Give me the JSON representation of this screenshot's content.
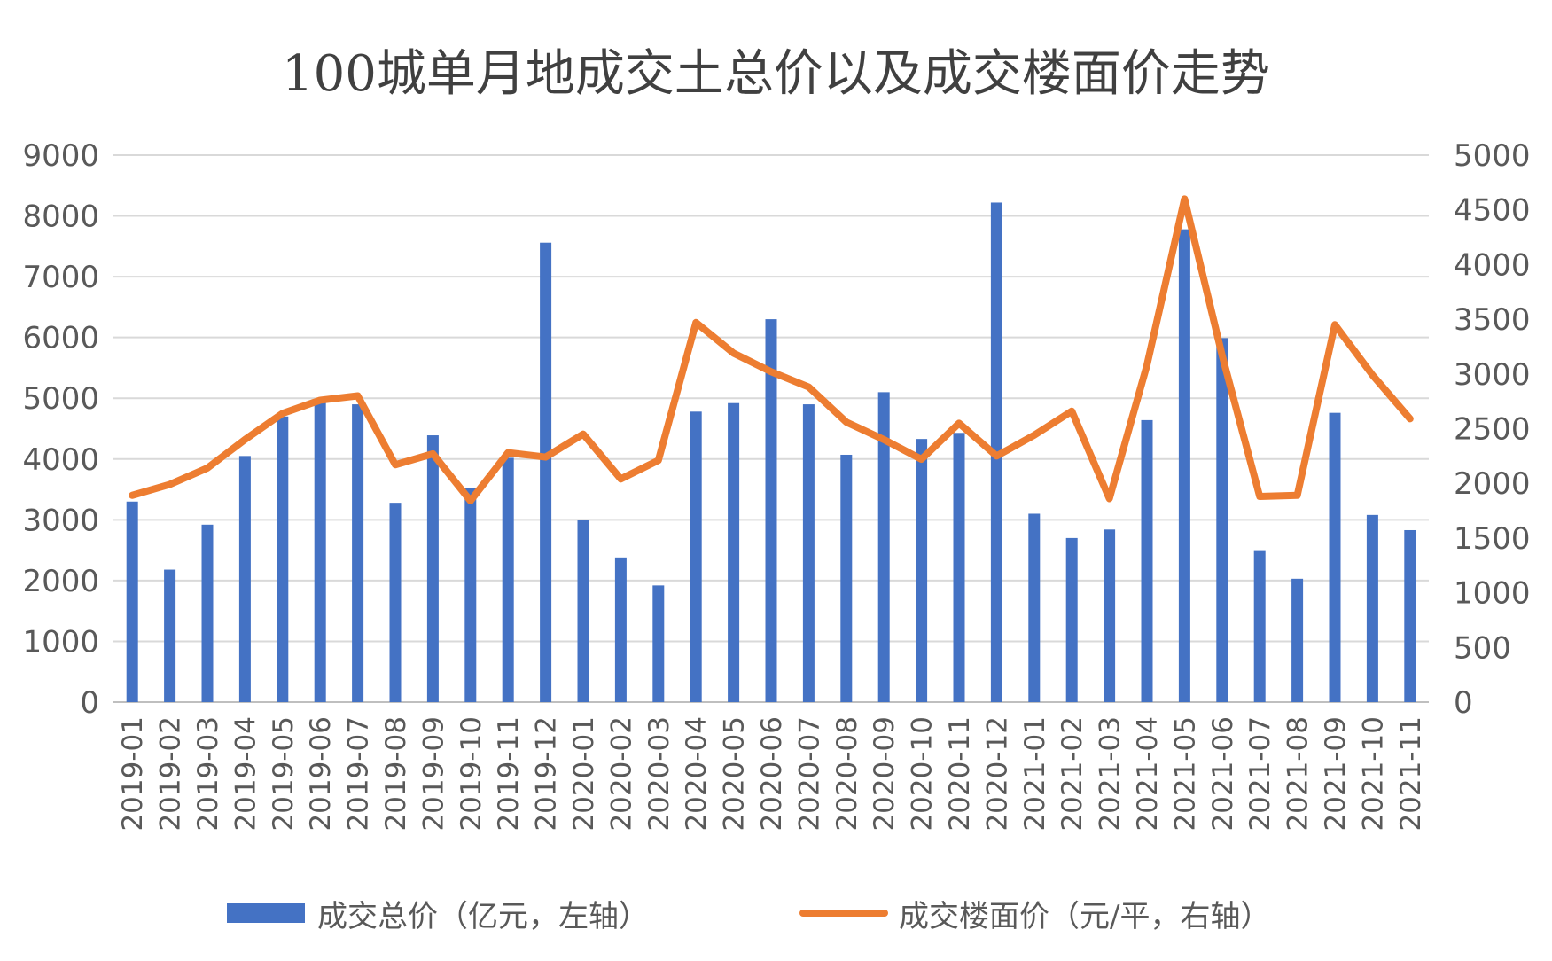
{
  "colors": {
    "bar": "#4472C4",
    "line": "#ED7D31",
    "grid": "#D9D9D9",
    "text": "#595959"
  },
  "chart_data": {
    "type": "bar",
    "title": "100城单月地成交土总价以及成交楼面价走势",
    "categories": [
      "2019-01",
      "2019-02",
      "2019-03",
      "2019-04",
      "2019-05",
      "2019-06",
      "2019-07",
      "2019-08",
      "2019-09",
      "2019-10",
      "2019-11",
      "2019-12",
      "2020-01",
      "2020-02",
      "2020-03",
      "2020-04",
      "2020-05",
      "2020-06",
      "2020-07",
      "2020-08",
      "2020-09",
      "2020-10",
      "2020-11",
      "2020-12",
      "2021-01",
      "2021-02",
      "2021-03",
      "2021-04",
      "2021-05",
      "2021-06",
      "2021-07",
      "2021-08",
      "2021-09",
      "2021-10",
      "2021-11"
    ],
    "series": [
      {
        "name": "成交总价（亿元，左轴）",
        "type": "bar",
        "axis": "left",
        "values": [
          3300,
          2180,
          2920,
          4050,
          4700,
          4950,
          4900,
          3280,
          4390,
          3530,
          4020,
          7560,
          3000,
          2380,
          1920,
          4780,
          4920,
          6300,
          4900,
          4070,
          5100,
          4330,
          4430,
          8220,
          3100,
          2700,
          2840,
          4640,
          7780,
          5990,
          2500,
          2030,
          4760,
          3080,
          2830
        ]
      },
      {
        "name": "成交楼面价（元/平，右轴）",
        "type": "line",
        "axis": "right",
        "values": [
          1890,
          1990,
          2140,
          2400,
          2640,
          2760,
          2800,
          2170,
          2270,
          1840,
          2280,
          2240,
          2450,
          2040,
          2210,
          3470,
          3190,
          3020,
          2880,
          2560,
          2400,
          2220,
          2550,
          2250,
          2440,
          2660,
          1860,
          3080,
          4600,
          3170,
          1880,
          1890,
          3450,
          2990,
          2590
        ]
      }
    ],
    "yleft": {
      "lim": [
        0,
        9000
      ],
      "ticks": [
        0,
        1000,
        2000,
        3000,
        4000,
        5000,
        6000,
        7000,
        8000,
        9000
      ]
    },
    "yright": {
      "lim": [
        0,
        5000
      ],
      "ticks": [
        0,
        500,
        1000,
        1500,
        2000,
        2500,
        3000,
        3500,
        4000,
        4500,
        5000
      ]
    },
    "grid": true,
    "legend": "bottom"
  }
}
